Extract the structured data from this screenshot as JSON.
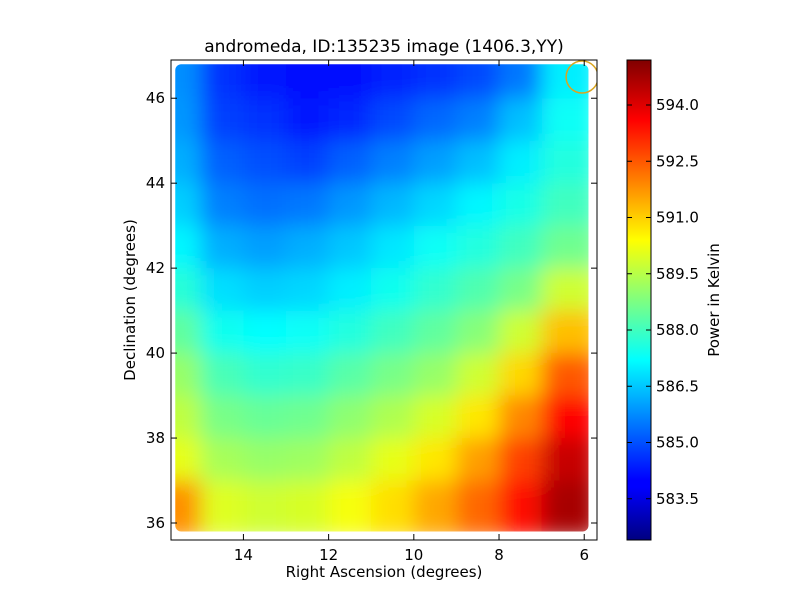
{
  "chart_data": {
    "type": "heatmap",
    "title": "andromeda, ID:135235 image (1406.3,YY)",
    "xlabel": "Right Ascension (degrees)",
    "ylabel": "Declination (degrees)",
    "xlim": [
      15.7,
      5.7
    ],
    "ylim": [
      35.6,
      46.9
    ],
    "x_ticks": [
      14,
      12,
      10,
      8,
      6
    ],
    "x_tick_labels": [
      "14",
      "12",
      "10",
      "8",
      "6"
    ],
    "y_ticks": [
      36,
      38,
      40,
      42,
      44,
      46
    ],
    "y_tick_labels": [
      "36",
      "38",
      "40",
      "42",
      "44",
      "46"
    ],
    "data_extent": {
      "ra": [
        15.6,
        5.9
      ],
      "dec": [
        35.8,
        46.8
      ]
    },
    "colormap": "jet",
    "colorbar": {
      "label": "Power in Kelvin",
      "range": [
        582.4,
        595.2
      ],
      "ticks": [
        583.5,
        585.0,
        586.5,
        588.0,
        589.5,
        591.0,
        592.5,
        594.0
      ],
      "tick_labels": [
        "583.5",
        "585.0",
        "586.5",
        "588.0",
        "589.5",
        "591.0",
        "592.5",
        "594.0"
      ]
    },
    "grid": {
      "ra": [
        15.5,
        14.5,
        13.5,
        12.5,
        11.5,
        10.5,
        9.5,
        8.5,
        7.5,
        6.5
      ],
      "dec": [
        46.5,
        45.5,
        44.5,
        43.5,
        42.5,
        41.5,
        40.5,
        39.5,
        38.5,
        37.5,
        36.5
      ],
      "values": [
        [
          585.8,
          584.6,
          584.3,
          584.1,
          584.2,
          584.4,
          584.6,
          584.9,
          585.5,
          587.0
        ],
        [
          585.9,
          584.8,
          584.6,
          584.3,
          584.5,
          584.9,
          585.3,
          585.6,
          586.4,
          587.3
        ],
        [
          586.2,
          585.2,
          585.0,
          584.8,
          585.2,
          585.6,
          586.0,
          586.4,
          587.0,
          587.6
        ],
        [
          586.6,
          585.6,
          585.4,
          585.5,
          585.9,
          586.3,
          586.7,
          587.1,
          587.5,
          588.0
        ],
        [
          587.1,
          586.2,
          586.0,
          586.2,
          586.5,
          586.9,
          587.3,
          587.6,
          588.0,
          588.6
        ],
        [
          587.7,
          586.8,
          586.6,
          586.7,
          587.0,
          587.4,
          587.8,
          588.2,
          588.7,
          589.8
        ],
        [
          588.4,
          587.4,
          587.2,
          587.3,
          587.6,
          588.0,
          588.4,
          588.9,
          589.8,
          591.2
        ],
        [
          589.1,
          588.1,
          587.8,
          587.9,
          588.3,
          588.7,
          589.1,
          589.8,
          590.9,
          592.5
        ],
        [
          589.6,
          588.7,
          588.5,
          588.6,
          589.0,
          589.4,
          589.9,
          590.7,
          591.9,
          593.6
        ],
        [
          590.1,
          589.3,
          589.1,
          589.2,
          589.6,
          590.1,
          590.7,
          591.6,
          592.8,
          594.3
        ],
        [
          591.8,
          590.0,
          589.8,
          589.9,
          590.3,
          590.8,
          591.5,
          592.3,
          593.4,
          594.7
        ]
      ]
    },
    "annotations": [
      {
        "type": "circle",
        "ra": 6.05,
        "dec": 46.5,
        "color": "#d9a521"
      }
    ]
  }
}
